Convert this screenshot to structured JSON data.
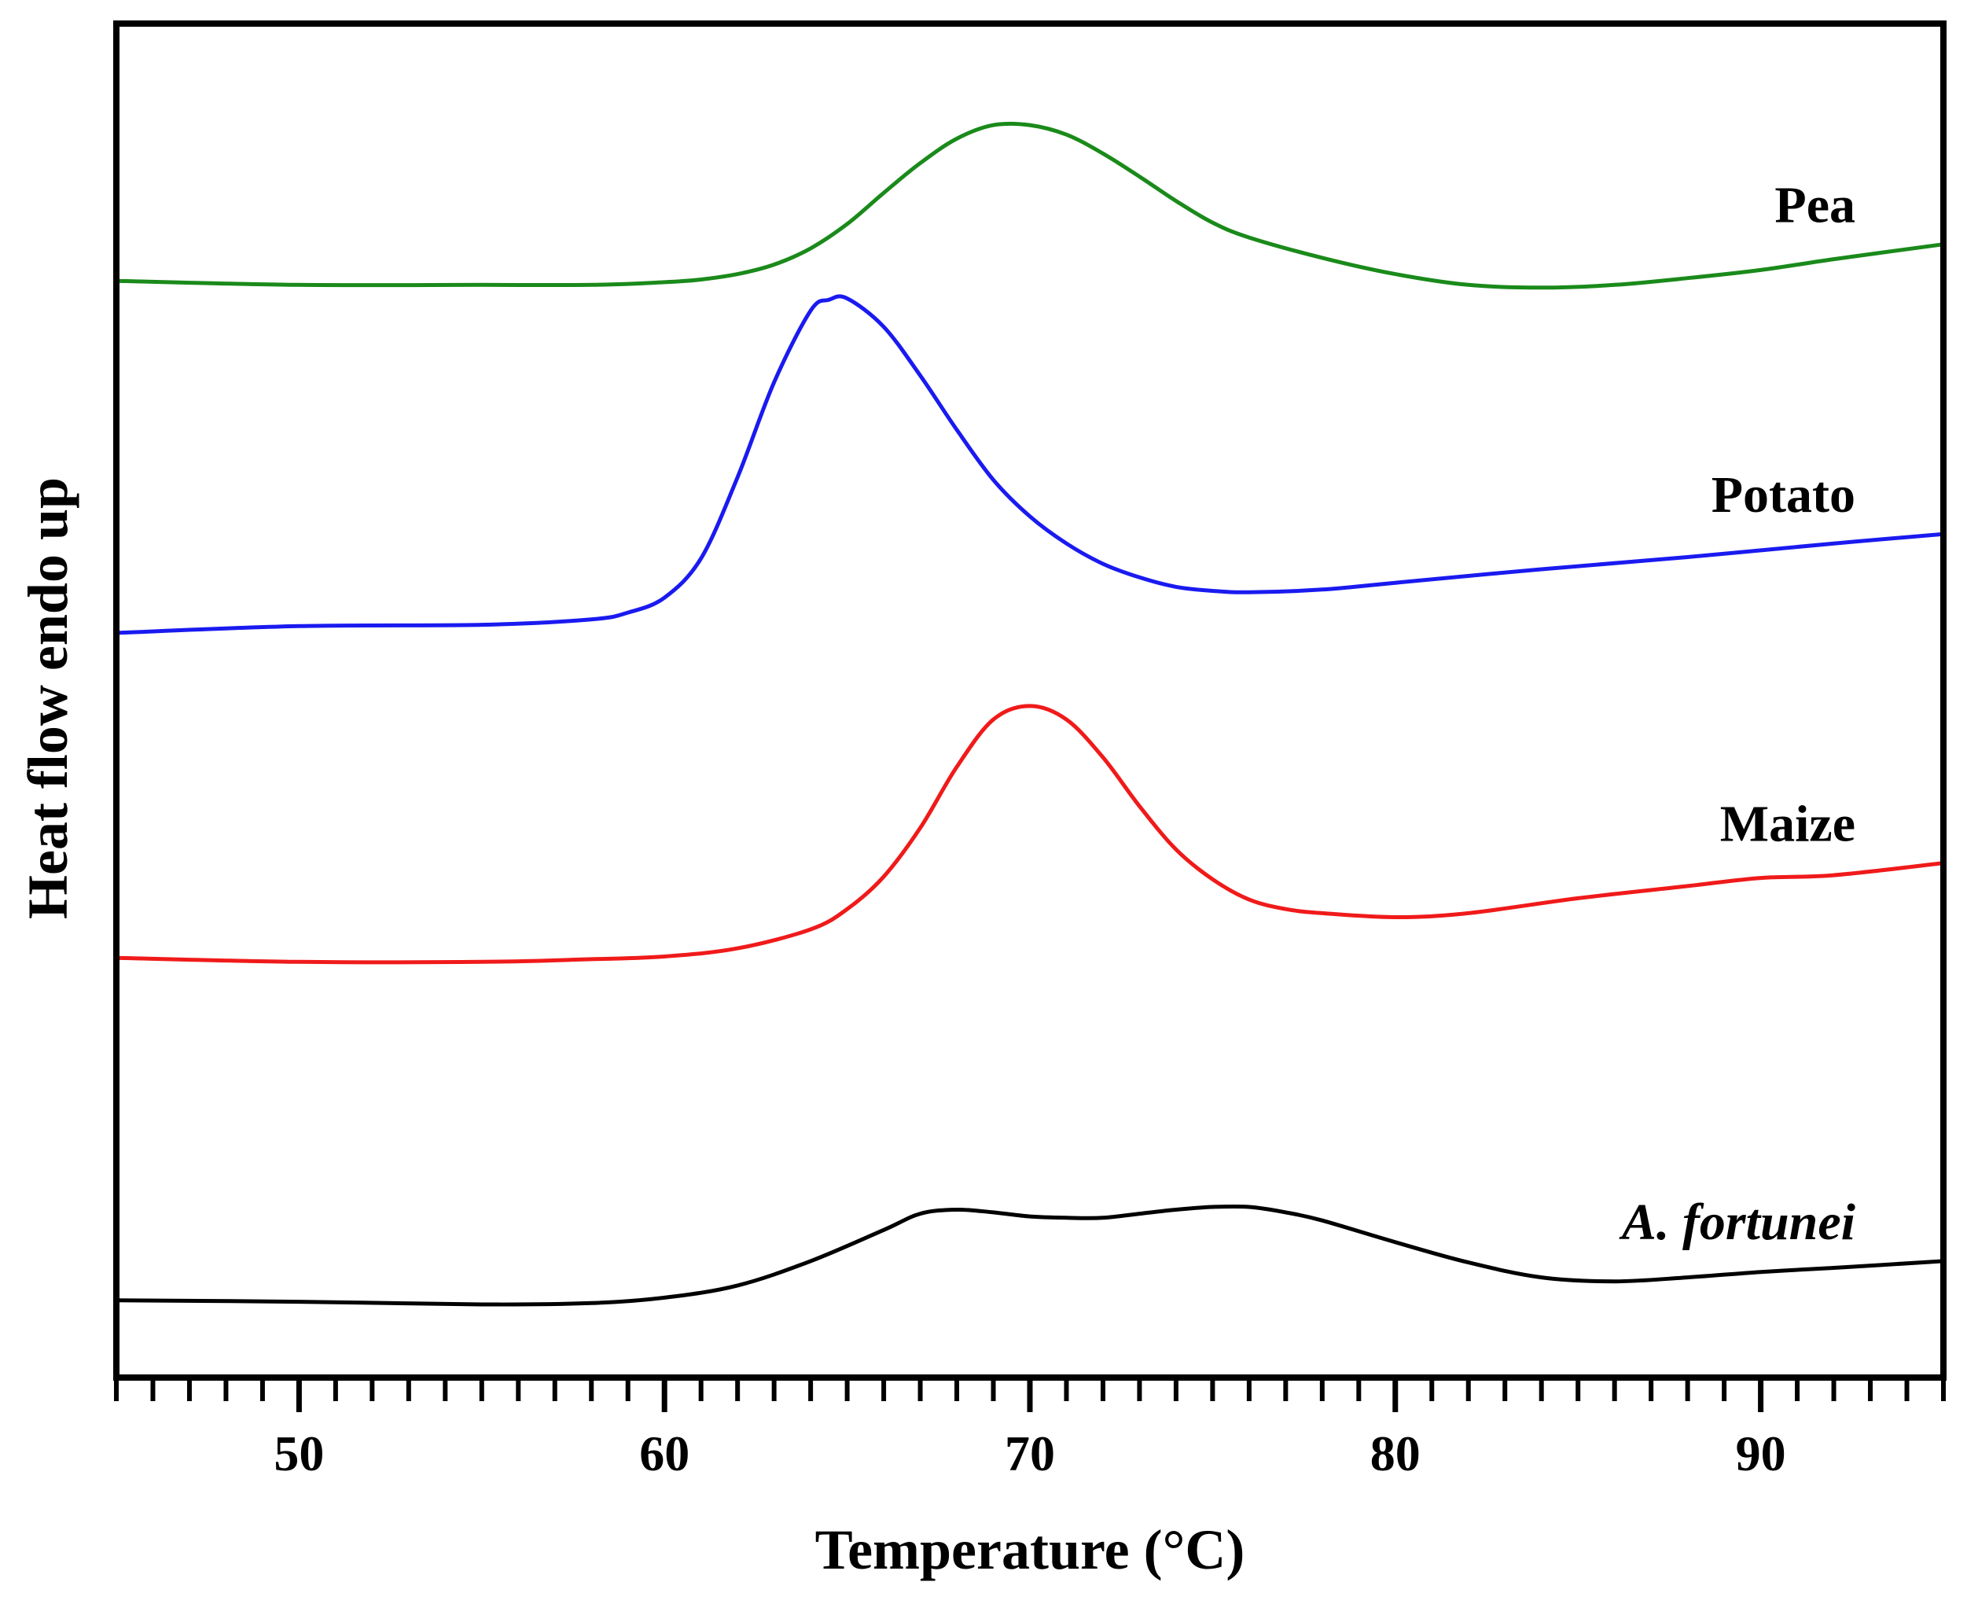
{
  "chart_data": {
    "type": "line",
    "title": "",
    "xlabel": "Temperature (°C)",
    "ylabel": "Heat flow endo up",
    "xlim": [
      45,
      95
    ],
    "ylim": [
      0,
      100
    ],
    "y_ticks_shown": false,
    "grid": false,
    "x_major_ticks": [
      50,
      60,
      70,
      80,
      90
    ],
    "x_tick_labels": [
      "50",
      "60",
      "70",
      "80",
      "90"
    ],
    "x_minor_step": 1,
    "series": [
      {
        "name": "Pea",
        "label": "Pea",
        "italic": false,
        "color": "#1a8a1a",
        "x": [
          45,
          50,
          55,
          58,
          60,
          61,
          62,
          63,
          64,
          65,
          66,
          67,
          68,
          69,
          70,
          71,
          72,
          73,
          74,
          75,
          76,
          78,
          80,
          82,
          84,
          86,
          88,
          90,
          92,
          95
        ],
        "y": [
          81.0,
          80.7,
          80.7,
          80.7,
          80.9,
          81.1,
          81.5,
          82.2,
          83.4,
          85.2,
          87.5,
          89.7,
          91.5,
          92.5,
          92.5,
          91.8,
          90.4,
          88.7,
          86.9,
          85.3,
          84.2,
          82.7,
          81.5,
          80.7,
          80.5,
          80.7,
          81.2,
          81.8,
          82.6,
          83.7
        ]
      },
      {
        "name": "Potato",
        "label": "Potato",
        "italic": false,
        "color": "#1a1af0",
        "x": [
          45,
          50,
          55,
          58,
          59,
          60,
          61,
          62,
          63,
          64,
          64.5,
          65,
          66,
          67,
          68,
          69,
          70,
          71,
          72,
          73,
          74,
          75,
          76,
          78,
          80,
          84,
          88,
          92,
          95
        ],
        "y": [
          55.0,
          55.5,
          55.6,
          56.0,
          56.5,
          57.6,
          60.5,
          66.5,
          73.5,
          78.8,
          79.6,
          79.7,
          77.6,
          74.0,
          70.0,
          66.3,
          63.6,
          61.6,
          60.1,
          59.1,
          58.4,
          58.1,
          58.0,
          58.2,
          58.7,
          59.7,
          60.6,
          61.6,
          62.3
        ]
      },
      {
        "name": "Maize",
        "label": "Maize",
        "italic": false,
        "color": "#f01a1a",
        "x": [
          45,
          50,
          55,
          58,
          60,
          62,
          64,
          65,
          66,
          67,
          68,
          69,
          70,
          71,
          72,
          73,
          74,
          75,
          76,
          77,
          78,
          80,
          82,
          85,
          88,
          90,
          92,
          95
        ],
        "y": [
          31.0,
          30.7,
          30.7,
          30.9,
          31.1,
          31.7,
          33.1,
          34.6,
          37.0,
          40.6,
          45.1,
          48.6,
          49.6,
          48.6,
          45.8,
          42.2,
          39.0,
          36.8,
          35.3,
          34.6,
          34.3,
          34.0,
          34.3,
          35.4,
          36.3,
          36.9,
          37.1,
          38.0
        ]
      },
      {
        "name": "A. fortunei",
        "label": "A. fortunei",
        "italic": true,
        "color": "#000000",
        "x": [
          45,
          50,
          55,
          58,
          60,
          62,
          64,
          66,
          67,
          68,
          69,
          70,
          71,
          72,
          73,
          74,
          75,
          76,
          77,
          78,
          80,
          82,
          84,
          86,
          88,
          90,
          92,
          95
        ],
        "y": [
          5.7,
          5.6,
          5.4,
          5.5,
          5.9,
          6.8,
          8.6,
          10.9,
          12.1,
          12.4,
          12.2,
          11.9,
          11.8,
          11.8,
          12.1,
          12.4,
          12.6,
          12.6,
          12.2,
          11.6,
          10.0,
          8.5,
          7.4,
          7.1,
          7.4,
          7.8,
          8.1,
          8.6
        ]
      }
    ]
  }
}
